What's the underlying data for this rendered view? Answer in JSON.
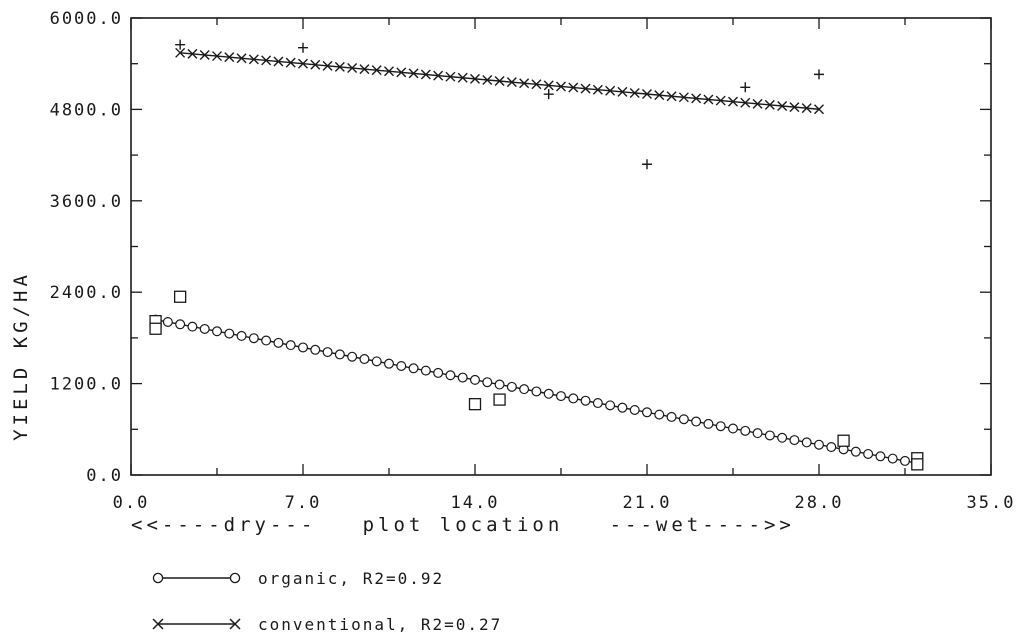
{
  "chart_data": {
    "type": "scatter",
    "xlabel": "<<----dry---   plot location   ---wet---->>",
    "ylabel": "YIELD KG/HA",
    "xlim": [
      0,
      35
    ],
    "ylim": [
      0,
      6000
    ],
    "x_ticks": [
      "0.0",
      "7.0",
      "14.0",
      "21.0",
      "28.0",
      "35.0"
    ],
    "y_ticks": [
      "0.0",
      "1200.0",
      "2400.0",
      "3600.0",
      "4800.0",
      "6000.0"
    ],
    "grid": false,
    "legend_placement": "below",
    "series": [
      {
        "name": "organic, R2=0.92",
        "kind": "fit",
        "marker": "circle",
        "x_range": [
          1,
          32
        ],
        "line": {
          "intercept": 2100,
          "slope": -60.8
        }
      },
      {
        "name": "conventional, R2=0.27",
        "kind": "fit",
        "marker": "x",
        "x_range": [
          2,
          28
        ],
        "line": {
          "intercept": 5600,
          "slope": -28.5
        }
      },
      {
        "kind": "observed",
        "marker": "square",
        "points": [
          {
            "x": 1,
            "y": 2020
          },
          {
            "x": 1,
            "y": 1920
          },
          {
            "x": 2,
            "y": 2340
          },
          {
            "x": 14,
            "y": 930
          },
          {
            "x": 15,
            "y": 990
          },
          {
            "x": 29,
            "y": 450
          },
          {
            "x": 32,
            "y": 220
          },
          {
            "x": 32,
            "y": 140
          }
        ]
      },
      {
        "kind": "observed",
        "marker": "plus",
        "points": [
          {
            "x": 2,
            "y": 5650
          },
          {
            "x": 7,
            "y": 5610
          },
          {
            "x": 17,
            "y": 5000
          },
          {
            "x": 21,
            "y": 4080
          },
          {
            "x": 25,
            "y": 5090
          },
          {
            "x": 28,
            "y": 5260
          }
        ]
      }
    ]
  }
}
